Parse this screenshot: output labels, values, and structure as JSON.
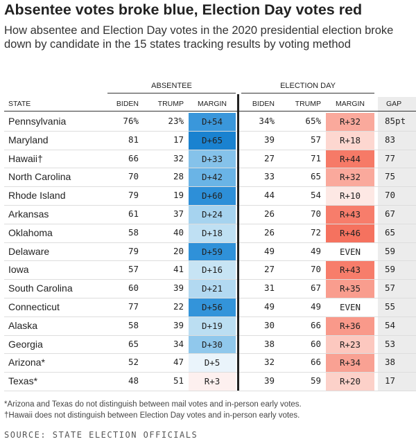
{
  "header": {
    "title": "Absentee votes broke blue, Election Day votes red",
    "subtitle": "How absentee and Election Day votes in the 2020 presidential election broke down by candidate in the 15 states tracking results by voting method"
  },
  "table": {
    "groups": [
      "ABSENTEE",
      "ELECTION DAY"
    ],
    "columns": [
      "STATE",
      "BIDEN",
      "TRUMP",
      "MARGIN",
      "BIDEN",
      "TRUMP",
      "MARGIN",
      "GAP"
    ],
    "rows": [
      [
        "Pennsylvania",
        "76%",
        "23%",
        "D+54",
        "34%",
        "65%",
        "R+32",
        "85pt"
      ],
      [
        "Maryland",
        "81",
        "17",
        "D+65",
        "39",
        "57",
        "R+18",
        "83"
      ],
      [
        "Hawaii†",
        "66",
        "32",
        "D+33",
        "27",
        "71",
        "R+44",
        "77"
      ],
      [
        "North Carolina",
        "70",
        "28",
        "D+42",
        "33",
        "65",
        "R+32",
        "75"
      ],
      [
        "Rhode Island",
        "79",
        "19",
        "D+60",
        "44",
        "54",
        "R+10",
        "70"
      ],
      [
        "Arkansas",
        "61",
        "37",
        "D+24",
        "26",
        "70",
        "R+43",
        "67"
      ],
      [
        "Oklahoma",
        "58",
        "40",
        "D+18",
        "26",
        "72",
        "R+46",
        "65"
      ],
      [
        "Delaware",
        "79",
        "20",
        "D+59",
        "49",
        "49",
        "EVEN",
        "59"
      ],
      [
        "Iowa",
        "57",
        "41",
        "D+16",
        "27",
        "70",
        "R+43",
        "59"
      ],
      [
        "South Carolina",
        "60",
        "39",
        "D+21",
        "31",
        "67",
        "R+35",
        "57"
      ],
      [
        "Connecticut",
        "77",
        "22",
        "D+56",
        "49",
        "49",
        "EVEN",
        "55"
      ],
      [
        "Alaska",
        "58",
        "39",
        "D+19",
        "30",
        "66",
        "R+36",
        "54"
      ],
      [
        "Georgia",
        "65",
        "34",
        "D+30",
        "38",
        "60",
        "R+23",
        "53"
      ],
      [
        "Arizona*",
        "52",
        "47",
        "D+5",
        "32",
        "66",
        "R+34",
        "38"
      ],
      [
        "Texas*",
        "48",
        "51",
        "R+3",
        "39",
        "59",
        "R+20",
        "17"
      ]
    ],
    "absentee_margin_colors": [
      "#3a97db",
      "#1a82d0",
      "#85c2ea",
      "#6ab4e6",
      "#2d8fd8",
      "#a6d3ef",
      "#bfe0f3",
      "#2f91d9",
      "#c7e4f4",
      "#b2d9f1",
      "#3394da",
      "#bbdef2",
      "#90c8ec",
      "#eaf4fb",
      "#fdf0ef"
    ],
    "election_day_margin_colors": [
      "#faa99c",
      "#fdd7d0",
      "#f67a67",
      "#faa99c",
      "#fde8e4",
      "#f77d6b",
      "#f5725f",
      "#ffffff",
      "#f77d6b",
      "#f99d8e",
      "#ffffff",
      "#f9998a",
      "#fcc8bf",
      "#f9a193",
      "#fcd1c9"
    ],
    "gap_color": "#ececec"
  },
  "footnotes": [
    "*Arizona and Texas do not distinguish between mail votes and in-person early votes.",
    "†Hawaii does not distinguish between Election Day votes and in-person early votes."
  ],
  "source": "SOURCE: STATE ELECTION OFFICIALS"
}
